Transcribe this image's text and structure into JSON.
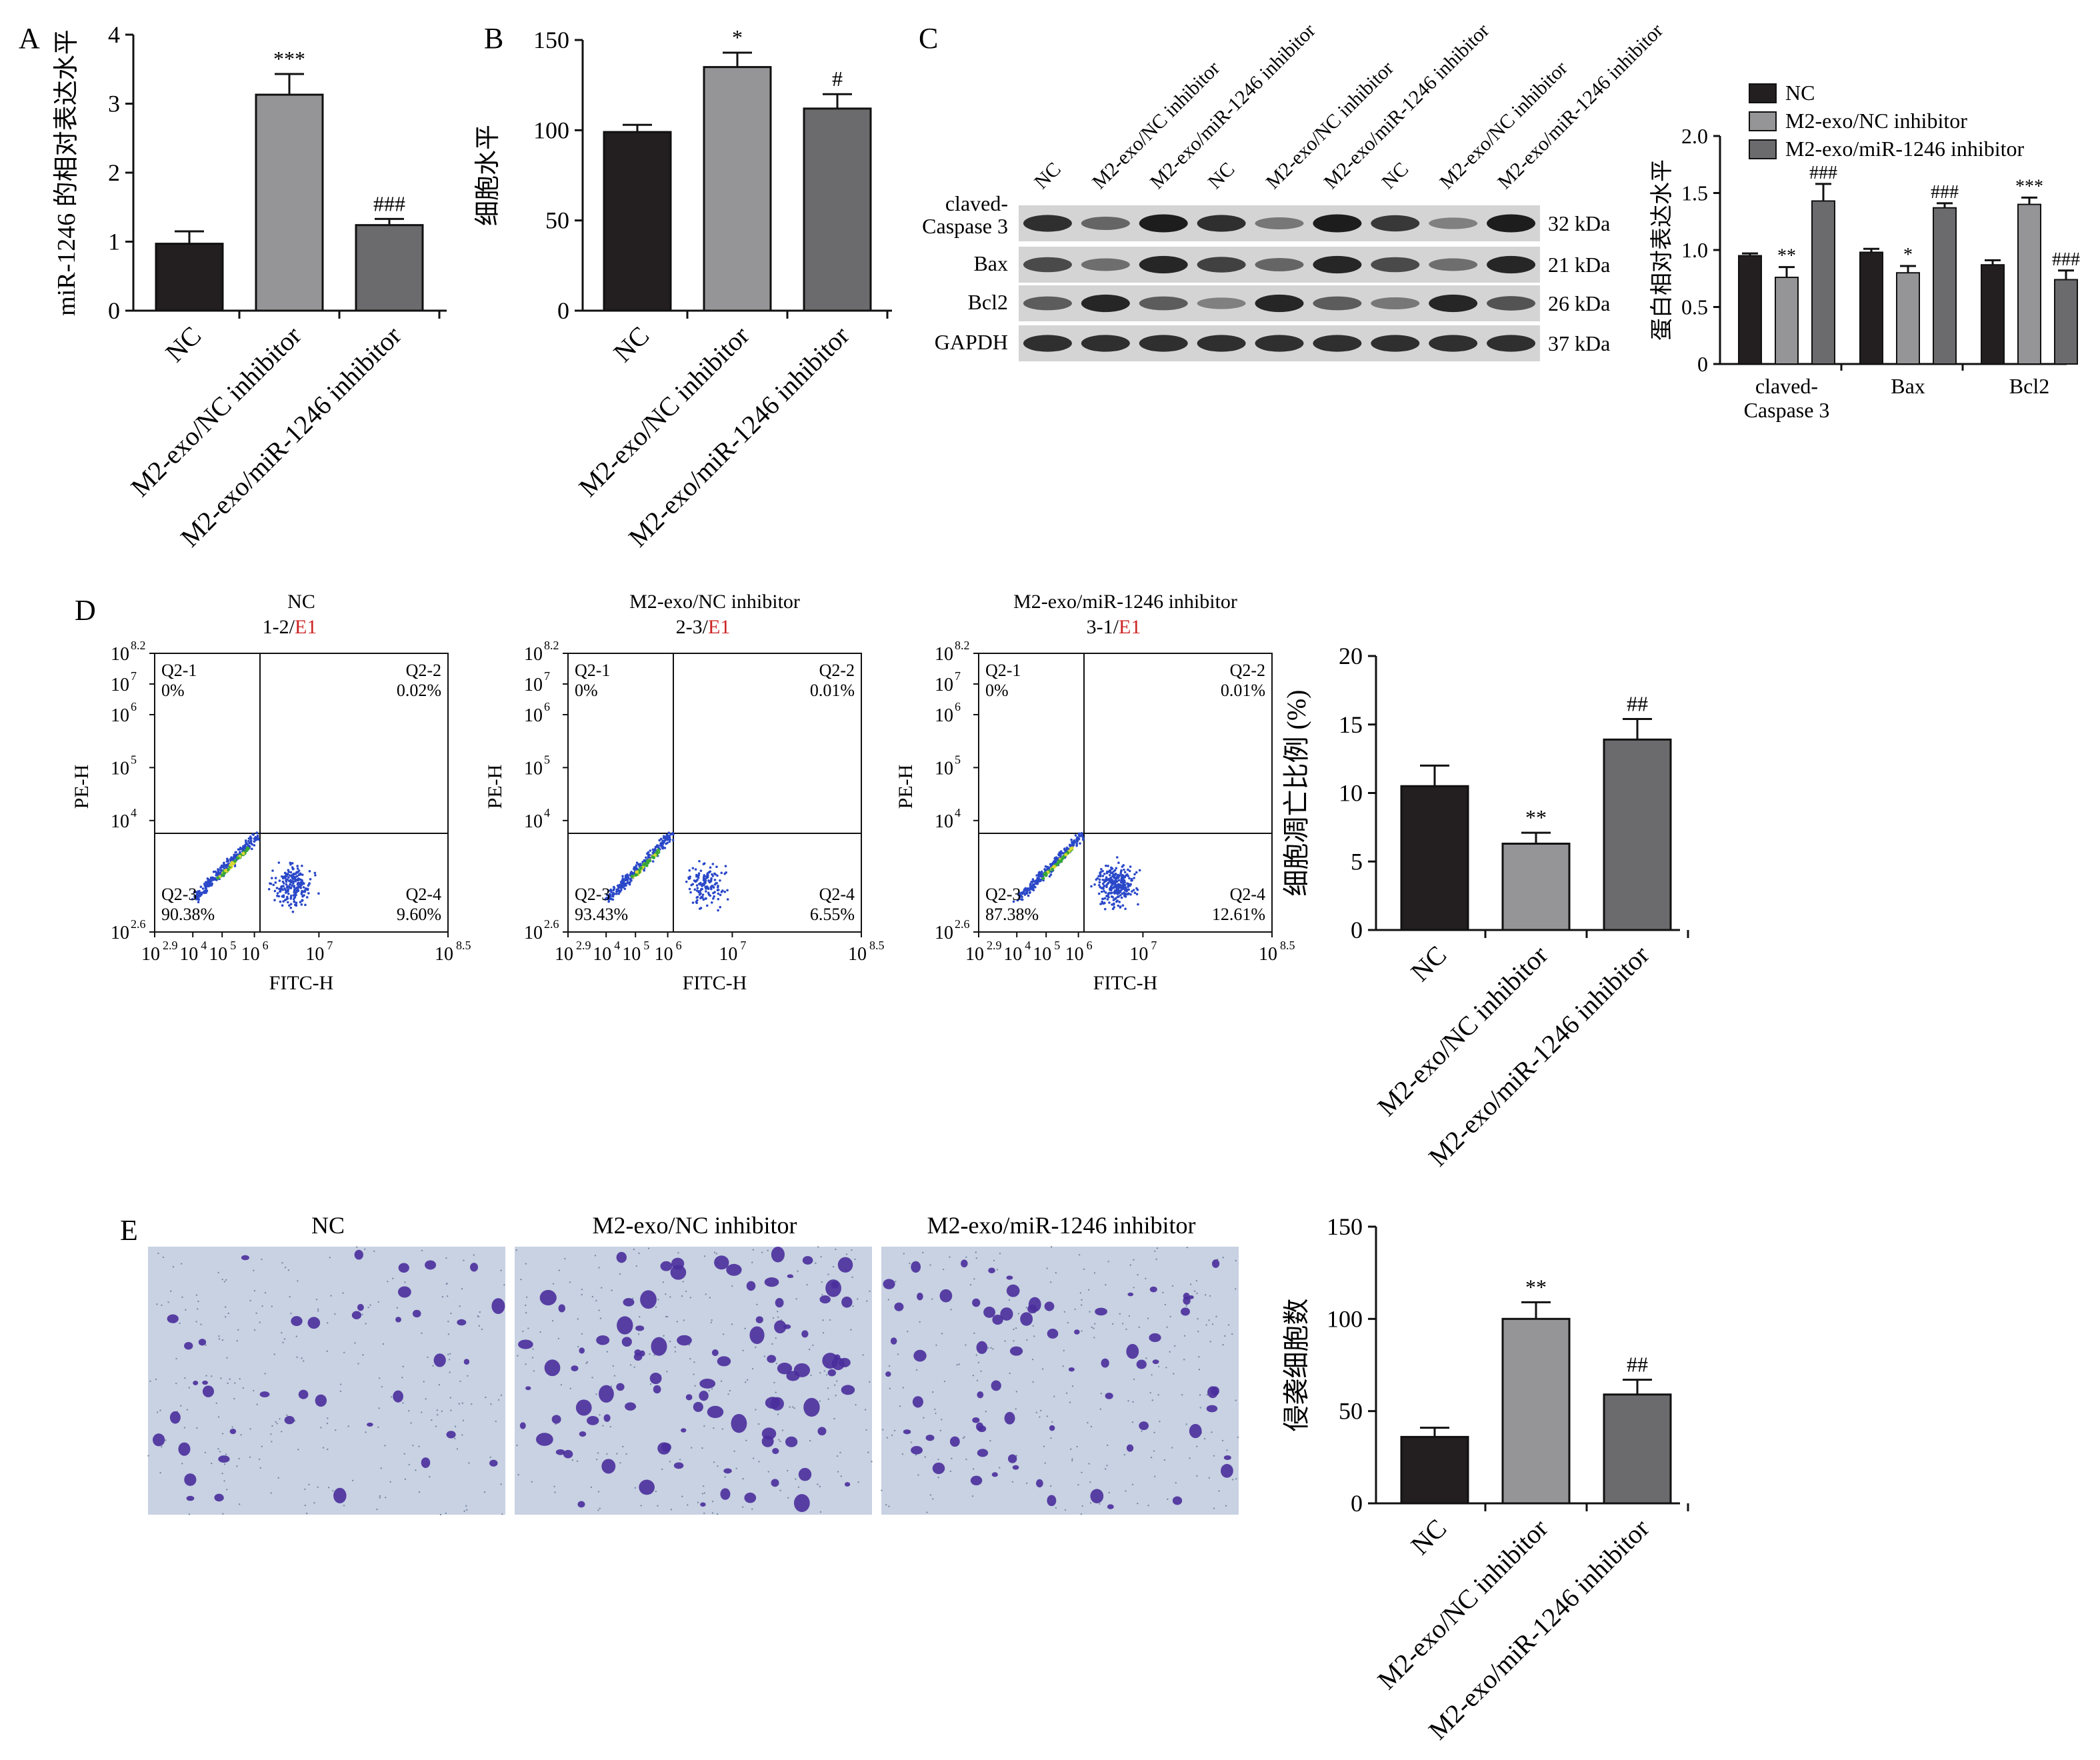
{
  "groups": [
    "NC",
    "M2-exo/NC inhibitor",
    "M2-exo/miR-1246 inhibitor"
  ],
  "colors": {
    "nc": "#231f20",
    "m2_nc": "#959597",
    "m2_mir": "#6b6b6d",
    "outline": "#111111",
    "gate_label_red": "#cc2222",
    "dot_blue": "#2a48c8",
    "dense_green": "#38a838",
    "dense_yellow": "#d8d830",
    "photo_bg": "#c8d2e2",
    "cell_purple": "#4a2d9c"
  },
  "panels": {
    "A": {
      "letter": "A",
      "chart_data": {
        "type": "bar",
        "categories": [
          "NC",
          "M2-exo/NC inhibitor",
          "M2-exo/miR-1246 inhibitor"
        ],
        "values": [
          0.97,
          3.13,
          1.24
        ],
        "errors": [
          0.18,
          0.3,
          0.09
        ],
        "annotations": [
          "",
          "***",
          "###"
        ],
        "ylabel": "miR-1246 的相对表达水平",
        "ylim": [
          0,
          4
        ],
        "yticks": [
          0,
          1,
          2,
          3,
          4
        ]
      }
    },
    "B": {
      "letter": "B",
      "chart_data": {
        "type": "bar",
        "categories": [
          "NC",
          "M2-exo/NC inhibitor",
          "M2-exo/miR-1246 inhibitor"
        ],
        "values": [
          99,
          135,
          112
        ],
        "errors": [
          4,
          8,
          8
        ],
        "annotations": [
          "",
          "*",
          "#"
        ],
        "ylabel": "细胞水平",
        "ylim": [
          0,
          150
        ],
        "yticks": [
          0,
          50,
          100,
          150
        ]
      }
    },
    "C": {
      "letter": "C",
      "blot": {
        "lane_labels": [
          "NC",
          "M2-exo/NC inhibitor",
          "M2-exo/miR-1246 inhibitor",
          "NC",
          "M2-exo/NC inhibitor",
          "M2-exo/miR-1246 inhibitor",
          "NC",
          "M2-exo/NC inhibitor",
          "M2-exo/miR-1246 inhibitor"
        ],
        "rows": [
          {
            "label": "claved-",
            "label2": "Caspase 3",
            "size": "32 kDa",
            "intensity": [
              0.85,
              0.55,
              0.95,
              0.85,
              0.45,
              0.95,
              0.8,
              0.4,
              0.95
            ]
          },
          {
            "label": "Bax",
            "label2": "",
            "size": "21 kDa",
            "intensity": [
              0.7,
              0.5,
              0.9,
              0.75,
              0.55,
              0.9,
              0.7,
              0.5,
              0.9
            ]
          },
          {
            "label": "Bcl2",
            "label2": "",
            "size": "26 kDa",
            "intensity": [
              0.6,
              0.9,
              0.6,
              0.4,
              0.9,
              0.6,
              0.45,
              0.9,
              0.65
            ]
          },
          {
            "label": "GAPDH",
            "label2": "",
            "size": "37 kDa",
            "intensity": [
              0.85,
              0.85,
              0.85,
              0.85,
              0.85,
              0.85,
              0.85,
              0.85,
              0.85
            ]
          }
        ]
      },
      "chart_data": {
        "type": "bar",
        "categories": [
          "claved-\nCaspase 3",
          "Bax",
          "Bcl2"
        ],
        "series": [
          {
            "name": "NC",
            "values": [
              0.95,
              0.98,
              0.87
            ],
            "errors": [
              0.02,
              0.03,
              0.04
            ],
            "annotations": [
              "",
              "",
              ""
            ]
          },
          {
            "name": "M2-exo/NC inhibitor",
            "values": [
              0.76,
              0.8,
              1.4
            ],
            "errors": [
              0.09,
              0.06,
              0.06
            ],
            "annotations": [
              "**",
              "*",
              "***"
            ]
          },
          {
            "name": "M2-exo/miR-1246 inhibitor",
            "values": [
              1.43,
              1.37,
              0.74
            ],
            "errors": [
              0.15,
              0.04,
              0.08
            ],
            "annotations": [
              "###",
              "###",
              "###"
            ]
          }
        ],
        "ylabel": "蛋白相对表达水平",
        "ylim": [
          0,
          2.0
        ],
        "yticks": [
          "0",
          "0.5",
          "1.0",
          "1.5",
          "2.0"
        ],
        "legend": "top-left"
      }
    },
    "D": {
      "letter": "D",
      "flow": [
        {
          "title": "NC",
          "gate_prefix": "1-2/",
          "gate_suffix": "E1",
          "q1": "Q2-1",
          "q1v": "0%",
          "q2": "Q2-2",
          "q2v": "0.02%",
          "q3": "Q2-3",
          "q3v": "90.38%",
          "q4": "Q2-4",
          "q4v": "9.60%",
          "apoptotic": 9.6
        },
        {
          "title": "M2-exo/NC inhibitor",
          "gate_prefix": "2-3/",
          "gate_suffix": "E1",
          "q1": "Q2-1",
          "q1v": "0%",
          "q2": "Q2-2",
          "q2v": "0.01%",
          "q3": "Q2-3",
          "q3v": "93.43%",
          "q4": "Q2-4",
          "q4v": "6.55%",
          "apoptotic": 6.55
        },
        {
          "title": "M2-exo/miR-1246 inhibitor",
          "gate_prefix": "3-1/",
          "gate_suffix": "E1",
          "q1": "Q2-1",
          "q1v": "0%",
          "q2": "Q2-2",
          "q2v": "0.01%",
          "q3": "Q2-3",
          "q3v": "87.38%",
          "q4": "Q2-4",
          "q4v": "12.61%",
          "apoptotic": 12.61
        }
      ],
      "flow_axes": {
        "x_label": "FITC-H",
        "y_label": "PE-H",
        "x_ticks": [
          {
            "b": "10",
            "e": "2.9"
          },
          {
            "b": "10",
            "e": "4"
          },
          {
            "b": "10",
            "e": "5"
          },
          {
            "b": "10",
            "e": "6"
          },
          {
            "b": "10",
            "e": "7"
          },
          {
            "b": "10",
            "e": "8.5"
          }
        ],
        "y_ticks": [
          {
            "b": "10",
            "e": "2.6"
          },
          {
            "b": "10",
            "e": "4"
          },
          {
            "b": "10",
            "e": "5"
          },
          {
            "b": "10",
            "e": "6"
          },
          {
            "b": "10",
            "e": "7"
          },
          {
            "b": "10",
            "e": "8.2"
          }
        ]
      },
      "chart_data": {
        "type": "bar",
        "categories": [
          "NC",
          "M2-exo/NC inhibitor",
          "M2-exo/miR-1246 inhibitor"
        ],
        "values": [
          10.5,
          6.3,
          13.9
        ],
        "errors": [
          1.5,
          0.8,
          1.5
        ],
        "annotations": [
          "",
          "**",
          "##"
        ],
        "ylabel": "细胞凋亡比例 (%)",
        "ylim": [
          0,
          20
        ],
        "yticks": [
          0,
          5,
          10,
          15,
          20
        ]
      }
    },
    "E": {
      "letter": "E",
      "photo_titles": [
        "NC",
        "M2-exo/NC inhibitor",
        "M2-exo/miR-1246 inhibitor"
      ],
      "chart_data": {
        "type": "bar",
        "categories": [
          "NC",
          "M2-exo/NC inhibitor",
          "M2-exo/miR-1246 inhibitor"
        ],
        "values": [
          36,
          100,
          59
        ],
        "errors": [
          5,
          9,
          8
        ],
        "annotations": [
          "",
          "**",
          "##"
        ],
        "ylabel": "侵袭细胞数",
        "ylim": [
          0,
          150
        ],
        "yticks": [
          0,
          50,
          100,
          150
        ]
      }
    }
  }
}
